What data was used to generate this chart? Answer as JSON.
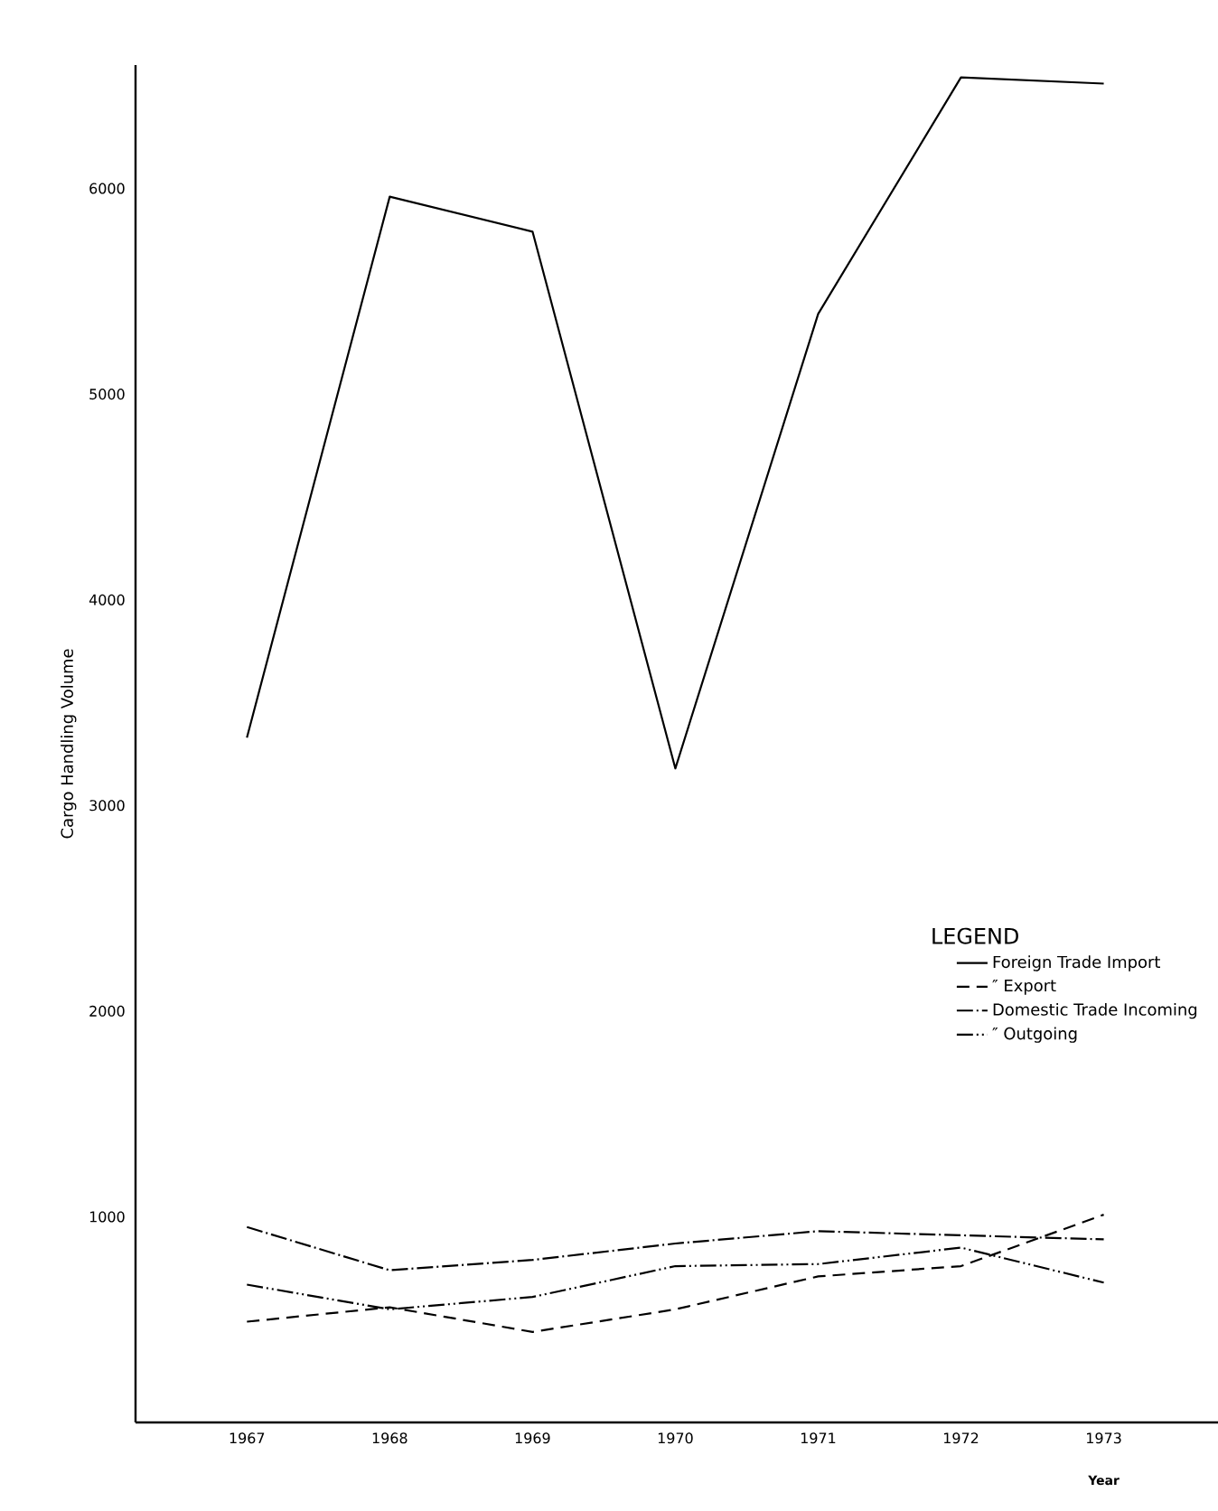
{
  "chart_data": {
    "type": "line",
    "xlabel": "Year",
    "ylabel": "Cargo Handling Volume",
    "legend_title": "LEGEND",
    "categories": [
      "1967",
      "1968",
      "1969",
      "1970",
      "1971",
      "1972",
      "1973"
    ],
    "ylim": [
      0,
      6600
    ],
    "yticks": [
      1000,
      2000,
      3000,
      4000,
      5000,
      6000
    ],
    "grid": false,
    "legend": "right",
    "series": [
      {
        "name": "Foreign Trade Import",
        "color": "#000000",
        "line_style": "solid",
        "values": [
          3330,
          5960,
          5790,
          3180,
          5390,
          6540,
          6510
        ]
      },
      {
        "name": "″          Export",
        "color": "#000000",
        "line_style": "dashed",
        "values": [
          490,
          560,
          440,
          550,
          710,
          760,
          1010
        ]
      },
      {
        "name": "Domestic Trade Incoming",
        "color": "#000000",
        "line_style": "dashdot",
        "values": [
          950,
          740,
          790,
          870,
          930,
          910,
          890
        ]
      },
      {
        "name": "″          Outgoing",
        "color": "#000000",
        "line_style": "dashdotdot",
        "values": [
          670,
          550,
          610,
          760,
          770,
          850,
          680
        ]
      }
    ]
  }
}
